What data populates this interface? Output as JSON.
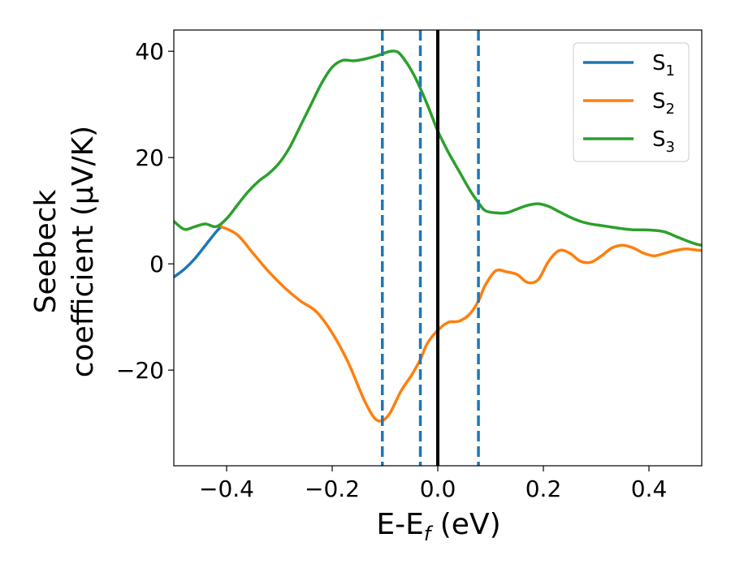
{
  "chart_data": {
    "type": "line",
    "xlabel": "E-E",
    "xlabel_sub": "f",
    "xlabel_unit": " (eV)",
    "ylabel_line1": "Seebeck",
    "ylabel_line2": "coefficient  (μV/K)",
    "xlim": [
      -0.5,
      0.5
    ],
    "ylim": [
      -38,
      44
    ],
    "xticks": [
      -0.4,
      -0.2,
      0.0,
      0.2,
      0.4
    ],
    "xtick_labels": [
      "−0.4",
      "−0.2",
      "0.0",
      "0.2",
      "0.4"
    ],
    "yticks": [
      -20,
      0,
      20,
      40
    ],
    "ytick_labels": [
      "−20",
      "0",
      "20",
      "40"
    ],
    "grid": false,
    "legend_position": "top-right",
    "vlines": [
      {
        "x": -0.105,
        "style": "dashed",
        "color": "#1f77b4"
      },
      {
        "x": -0.033,
        "style": "dashed",
        "color": "#1f77b4"
      },
      {
        "x": 0.0,
        "style": "solid",
        "color": "#000000"
      },
      {
        "x": 0.077,
        "style": "dashed",
        "color": "#1f77b4"
      }
    ],
    "series": [
      {
        "name": "S",
        "sub": "1",
        "color": "#1f77b4",
        "x": [
          -0.5,
          -0.48,
          -0.46,
          -0.44,
          -0.42,
          -0.41
        ],
        "y": [
          -2.5,
          -1.0,
          1.0,
          3.5,
          6.0,
          7.0
        ]
      },
      {
        "name": "S",
        "sub": "2",
        "color": "#ff7f0e",
        "x": [
          -0.41,
          -0.38,
          -0.35,
          -0.32,
          -0.29,
          -0.26,
          -0.23,
          -0.2,
          -0.17,
          -0.14,
          -0.12,
          -0.105,
          -0.09,
          -0.07,
          -0.05,
          -0.033,
          -0.02,
          0.0,
          0.02,
          0.04,
          0.06,
          0.077,
          0.09,
          0.11,
          0.13,
          0.15,
          0.17,
          0.19,
          0.21,
          0.23,
          0.25,
          0.27,
          0.29,
          0.31,
          0.33,
          0.35,
          0.37,
          0.39,
          0.41,
          0.43,
          0.45,
          0.47,
          0.49,
          0.5
        ],
        "y": [
          7.0,
          5.5,
          2.0,
          -1.5,
          -4.5,
          -7.0,
          -9.0,
          -13.0,
          -18.5,
          -25.5,
          -29.0,
          -29.5,
          -28.0,
          -24.0,
          -21.0,
          -18.0,
          -15.0,
          -12.5,
          -11.0,
          -10.8,
          -9.5,
          -7.0,
          -4.0,
          -1.3,
          -1.5,
          -2.0,
          -3.5,
          -3.0,
          0.5,
          2.5,
          2.0,
          0.5,
          0.3,
          1.5,
          3.0,
          3.5,
          3.0,
          2.0,
          1.5,
          2.0,
          2.5,
          2.8,
          2.6,
          2.5
        ]
      },
      {
        "name": "S",
        "sub": "3",
        "color": "#2ca02c",
        "x": [
          -0.5,
          -0.48,
          -0.46,
          -0.44,
          -0.42,
          -0.4,
          -0.38,
          -0.36,
          -0.34,
          -0.32,
          -0.3,
          -0.28,
          -0.26,
          -0.24,
          -0.22,
          -0.2,
          -0.18,
          -0.16,
          -0.14,
          -0.12,
          -0.105,
          -0.09,
          -0.075,
          -0.06,
          -0.045,
          -0.033,
          -0.02,
          -0.01,
          0.0,
          0.02,
          0.04,
          0.06,
          0.077,
          0.09,
          0.11,
          0.13,
          0.15,
          0.17,
          0.19,
          0.21,
          0.23,
          0.25,
          0.27,
          0.29,
          0.31,
          0.33,
          0.35,
          0.37,
          0.39,
          0.41,
          0.43,
          0.45,
          0.47,
          0.49,
          0.5
        ],
        "y": [
          8.0,
          6.5,
          7.0,
          7.5,
          7.0,
          8.5,
          11.0,
          13.5,
          15.5,
          17.0,
          19.0,
          22.0,
          26.0,
          30.0,
          34.0,
          37.0,
          38.3,
          38.2,
          38.5,
          39.0,
          39.5,
          40.0,
          39.8,
          38.0,
          35.5,
          33.0,
          30.0,
          27.5,
          25.0,
          21.0,
          17.5,
          14.0,
          11.5,
          10.0,
          9.6,
          9.6,
          10.3,
          11.0,
          11.3,
          10.8,
          9.8,
          8.8,
          8.0,
          7.5,
          7.2,
          6.9,
          6.6,
          6.4,
          6.4,
          6.3,
          6.0,
          5.2,
          4.4,
          3.7,
          3.5
        ]
      }
    ]
  }
}
